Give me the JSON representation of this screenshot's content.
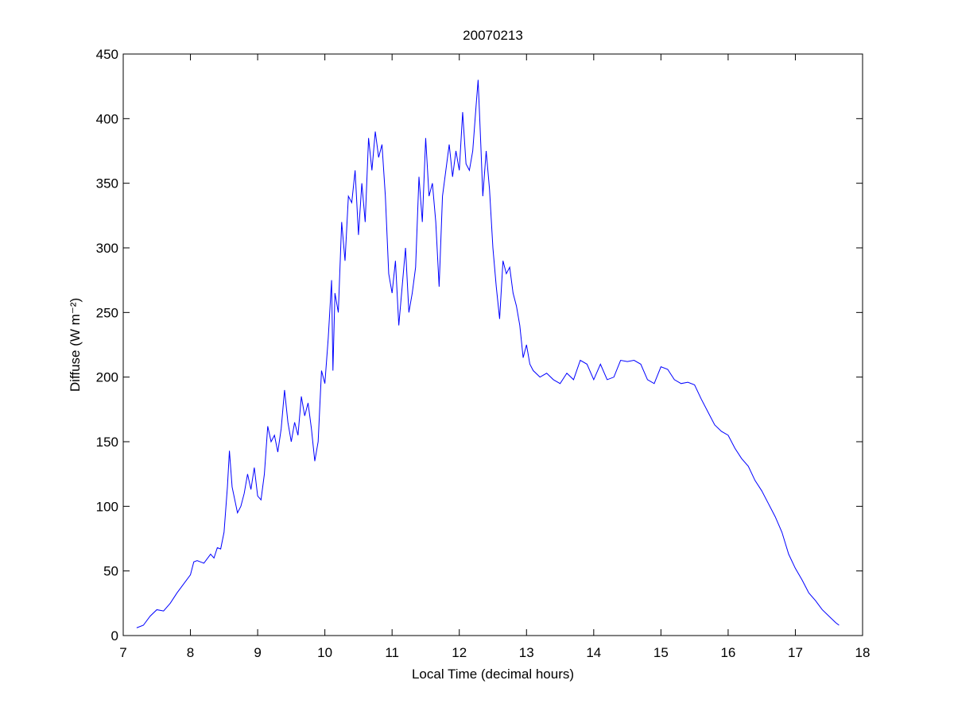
{
  "chart_data": {
    "type": "line",
    "title": "20070213",
    "xlabel": "Local Time (decimal hours)",
    "ylabel": "Diffuse (W m⁻²)",
    "xlim": [
      7,
      18
    ],
    "xticks": [
      7,
      8,
      9,
      10,
      11,
      12,
      13,
      14,
      15,
      16,
      17,
      18
    ],
    "ylim": [
      0,
      450
    ],
    "yticks": [
      0,
      50,
      100,
      150,
      200,
      250,
      300,
      350,
      400,
      450
    ],
    "grid": false,
    "series": [
      {
        "color": "#0000ff",
        "x": [
          7.2,
          7.3,
          7.4,
          7.5,
          7.6,
          7.7,
          7.8,
          7.9,
          8.0,
          8.05,
          8.1,
          8.2,
          8.3,
          8.35,
          8.4,
          8.45,
          8.5,
          8.55,
          8.58,
          8.62,
          8.7,
          8.75,
          8.8,
          8.85,
          8.9,
          8.95,
          9.0,
          9.05,
          9.1,
          9.15,
          9.2,
          9.25,
          9.3,
          9.35,
          9.4,
          9.45,
          9.5,
          9.55,
          9.6,
          9.65,
          9.7,
          9.75,
          9.8,
          9.85,
          9.9,
          9.95,
          10.0,
          10.05,
          10.1,
          10.12,
          10.15,
          10.2,
          10.25,
          10.3,
          10.35,
          10.4,
          10.45,
          10.5,
          10.55,
          10.6,
          10.65,
          10.7,
          10.75,
          10.8,
          10.85,
          10.9,
          10.95,
          11.0,
          11.05,
          11.1,
          11.15,
          11.2,
          11.25,
          11.3,
          11.35,
          11.4,
          11.45,
          11.5,
          11.55,
          11.6,
          11.65,
          11.7,
          11.75,
          11.8,
          11.85,
          11.9,
          11.95,
          12.0,
          12.05,
          12.1,
          12.15,
          12.2,
          12.25,
          12.28,
          12.32,
          12.35,
          12.4,
          12.45,
          12.5,
          12.55,
          12.6,
          12.65,
          12.7,
          12.75,
          12.8,
          12.85,
          12.9,
          12.95,
          13.0,
          13.05,
          13.1,
          13.2,
          13.3,
          13.4,
          13.5,
          13.6,
          13.7,
          13.8,
          13.9,
          14.0,
          14.1,
          14.2,
          14.3,
          14.4,
          14.5,
          14.6,
          14.7,
          14.8,
          14.9,
          15.0,
          15.1,
          15.2,
          15.3,
          15.4,
          15.5,
          15.6,
          15.7,
          15.8,
          15.9,
          16.0,
          16.1,
          16.2,
          16.3,
          16.4,
          16.5,
          16.6,
          16.7,
          16.8,
          16.9,
          17.0,
          17.1,
          17.2,
          17.3,
          17.4,
          17.5,
          17.6,
          17.65
        ],
        "values": [
          6,
          8,
          15,
          20,
          19,
          25,
          33,
          40,
          47,
          57,
          58,
          56,
          63,
          60,
          68,
          67,
          80,
          115,
          143,
          115,
          95,
          100,
          110,
          125,
          113,
          130,
          108,
          105,
          125,
          162,
          150,
          155,
          142,
          160,
          190,
          165,
          150,
          165,
          155,
          185,
          170,
          180,
          160,
          135,
          150,
          205,
          195,
          230,
          275,
          205,
          265,
          250,
          320,
          290,
          340,
          335,
          360,
          310,
          350,
          320,
          385,
          360,
          390,
          370,
          380,
          340,
          280,
          265,
          290,
          240,
          270,
          300,
          250,
          265,
          285,
          355,
          320,
          385,
          340,
          350,
          320,
          270,
          340,
          360,
          380,
          355,
          375,
          360,
          405,
          365,
          360,
          375,
          410,
          430,
          380,
          340,
          375,
          345,
          300,
          270,
          245,
          290,
          280,
          285,
          265,
          255,
          240,
          215,
          225,
          210,
          205,
          200,
          203,
          198,
          195,
          203,
          198,
          213,
          210,
          198,
          210,
          198,
          200,
          213,
          212,
          213,
          210,
          198,
          195,
          208,
          206,
          198,
          195,
          196,
          194,
          183,
          173,
          163,
          158,
          155,
          145,
          137,
          131,
          120,
          112,
          102,
          92,
          80,
          63,
          52,
          43,
          33,
          27,
          20,
          15,
          10,
          8
        ]
      }
    ]
  }
}
